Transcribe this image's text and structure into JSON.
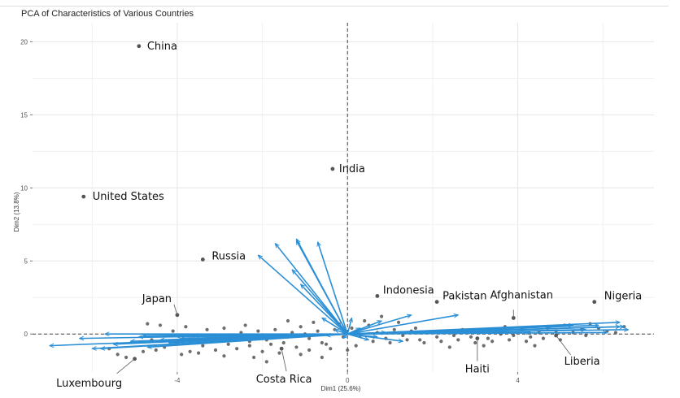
{
  "chart_data": {
    "type": "scatter",
    "title": "PCA of Characteristics of Various Countries",
    "xlabel": "Dim1 (25.6%)",
    "ylabel": "Dim2 (13.8%)",
    "xlim": [
      -7.4,
      7.2
    ],
    "ylim": [
      -2.6,
      21.3
    ],
    "xticks": [
      -4,
      0,
      4
    ],
    "yticks": [
      0,
      5,
      10,
      15,
      20
    ],
    "grid": true,
    "reference_lines": {
      "x": 0,
      "y": 0,
      "style": "dashed"
    },
    "point_color": "#555555",
    "arrow_color": "#2b8fd6",
    "labeled_points": [
      {
        "name": "China",
        "x": -4.9,
        "y": 19.7
      },
      {
        "name": "India",
        "x": -0.35,
        "y": 11.3
      },
      {
        "name": "United States",
        "x": -6.2,
        "y": 9.4
      },
      {
        "name": "Russia",
        "x": -3.4,
        "y": 5.1
      },
      {
        "name": "Japan",
        "x": -4.0,
        "y": 1.3
      },
      {
        "name": "Indonesia",
        "x": 0.7,
        "y": 2.6
      },
      {
        "name": "Pakistan",
        "x": 2.1,
        "y": 2.2
      },
      {
        "name": "Afghanistan",
        "x": 3.9,
        "y": 1.1
      },
      {
        "name": "Nigeria",
        "x": 5.8,
        "y": 2.2
      },
      {
        "name": "Haiti",
        "x": 3.05,
        "y": -0.3
      },
      {
        "name": "Liberia",
        "x": 4.9,
        "y": -0.1
      },
      {
        "name": "Costa Rica",
        "x": -1.55,
        "y": -1.0
      },
      {
        "name": "Luxembourg",
        "x": -5.0,
        "y": -1.7
      }
    ],
    "points": [
      [
        -4.4,
        0.6
      ],
      [
        -4.1,
        0.2
      ],
      [
        -3.8,
        0.5
      ],
      [
        -3.6,
        -0.1
      ],
      [
        -3.3,
        0.3
      ],
      [
        -3.1,
        -0.2
      ],
      [
        -2.9,
        0.4
      ],
      [
        -2.7,
        -0.3
      ],
      [
        -2.5,
        0.1
      ],
      [
        -2.3,
        -0.5
      ],
      [
        -2.1,
        0.2
      ],
      [
        -1.9,
        -0.4
      ],
      [
        -1.7,
        0.3
      ],
      [
        -1.5,
        -0.6
      ],
      [
        -1.3,
        0.1
      ],
      [
        -1.1,
        0.5
      ],
      [
        -0.9,
        -0.3
      ],
      [
        -0.7,
        0.2
      ],
      [
        -0.5,
        -0.7
      ],
      [
        -0.3,
        0.3
      ],
      [
        -0.1,
        -0.2
      ],
      [
        0.1,
        0.4
      ],
      [
        0.3,
        -0.1
      ],
      [
        0.5,
        0.6
      ],
      [
        0.7,
        0.1
      ],
      [
        0.9,
        -0.3
      ],
      [
        1.1,
        0.3
      ],
      [
        1.3,
        -0.1
      ],
      [
        1.5,
        0.2
      ],
      [
        1.7,
        -0.4
      ],
      [
        1.9,
        0.1
      ],
      [
        2.1,
        -0.2
      ],
      [
        2.3,
        0.2
      ],
      [
        2.5,
        -0.1
      ],
      [
        2.7,
        0.3
      ],
      [
        2.9,
        -0.2
      ],
      [
        3.1,
        0.1
      ],
      [
        3.3,
        -0.3
      ],
      [
        3.5,
        0.2
      ],
      [
        3.7,
        0.5
      ],
      [
        3.9,
        -0.1
      ],
      [
        4.1,
        0.3
      ],
      [
        4.3,
        -0.2
      ],
      [
        4.5,
        0.1
      ],
      [
        4.7,
        0.4
      ],
      [
        4.9,
        0.2
      ],
      [
        5.1,
        0.6
      ],
      [
        5.3,
        0.1
      ],
      [
        5.5,
        0.3
      ],
      [
        5.7,
        0.7
      ],
      [
        5.9,
        0.4
      ],
      [
        6.1,
        0.2
      ],
      [
        -4.7,
        0.7
      ],
      [
        -4.6,
        -0.4
      ],
      [
        -4.3,
        -0.9
      ],
      [
        -4.0,
        -0.6
      ],
      [
        -3.7,
        -1.2
      ],
      [
        -3.4,
        -0.8
      ],
      [
        -3.1,
        -1.1
      ],
      [
        -2.8,
        -0.7
      ],
      [
        -2.6,
        -1.0
      ],
      [
        -2.3,
        -0.8
      ],
      [
        -2.0,
        -1.2
      ],
      [
        -1.8,
        -0.7
      ],
      [
        -1.6,
        -1.3
      ],
      [
        -1.2,
        -0.9
      ],
      [
        -0.9,
        -1.1
      ],
      [
        -0.6,
        -0.6
      ],
      [
        -0.4,
        -1.0
      ],
      [
        0.2,
        -0.8
      ],
      [
        0.6,
        -0.5
      ],
      [
        1.0,
        -0.6
      ],
      [
        1.4,
        -0.4
      ],
      [
        1.8,
        -0.6
      ],
      [
        2.2,
        -0.5
      ],
      [
        2.6,
        -0.4
      ],
      [
        3.0,
        -0.6
      ],
      [
        3.4,
        -0.5
      ],
      [
        3.8,
        -0.4
      ],
      [
        4.2,
        -0.5
      ],
      [
        4.6,
        -0.3
      ],
      [
        5.0,
        -0.4
      ],
      [
        -2.4,
        0.6
      ],
      [
        -1.4,
        0.9
      ],
      [
        -0.8,
        0.8
      ],
      [
        -0.2,
        0.7
      ],
      [
        0.4,
        0.9
      ],
      [
        0.8,
        1.2
      ],
      [
        1.2,
        0.8
      ],
      [
        -5.2,
        -1.6
      ],
      [
        -5.4,
        -1.4
      ],
      [
        -4.8,
        -1.2
      ],
      [
        -4.5,
        -1.1
      ],
      [
        -3.9,
        -1.4
      ],
      [
        -3.5,
        -1.3
      ],
      [
        -2.9,
        -1.5
      ],
      [
        -2.2,
        -1.6
      ],
      [
        -1.9,
        -1.9
      ],
      [
        -1.1,
        -1.4
      ],
      [
        -0.6,
        -1.6
      ],
      [
        0.0,
        -1.1
      ],
      [
        2.4,
        -0.9
      ],
      [
        3.2,
        -0.8
      ],
      [
        4.4,
        -0.8
      ],
      [
        5.6,
        -0.1
      ],
      [
        6.3,
        0.1
      ],
      [
        6.5,
        0.5
      ],
      [
        -5.6,
        -1.0
      ],
      [
        -3.2,
        -0.5
      ],
      [
        -1.0,
        0.0
      ],
      [
        1.6,
        0.4
      ],
      [
        3.6,
        0.0
      ]
    ],
    "loading_arrows": [
      [
        -7.0,
        -0.8
      ],
      [
        -6.3,
        -0.3
      ],
      [
        -6.0,
        -1.0
      ],
      [
        -5.8,
        -1.0
      ],
      [
        -5.7,
        0.0
      ],
      [
        -5.5,
        -0.7
      ],
      [
        -5.1,
        -0.5
      ],
      [
        -4.9,
        -0.2
      ],
      [
        -4.8,
        -0.1
      ],
      [
        -4.7,
        -0.9
      ],
      [
        -4.4,
        -0.4
      ],
      [
        -4.2,
        -0.6
      ],
      [
        -4.0,
        -0.2
      ],
      [
        -3.9,
        -0.3
      ],
      [
        -3.6,
        -0.1
      ],
      [
        -3.3,
        -0.4
      ],
      [
        -3.0,
        -0.2
      ],
      [
        -2.8,
        -0.1
      ],
      [
        -2.1,
        -0.1
      ],
      [
        -1.5,
        -0.2
      ],
      [
        -2.1,
        5.4
      ],
      [
        -1.7,
        6.2
      ],
      [
        -1.2,
        6.4
      ],
      [
        -1.2,
        6.5
      ],
      [
        -0.7,
        6.3
      ],
      [
        -1.3,
        4.4
      ],
      [
        -1.1,
        3.4
      ],
      [
        -0.6,
        1.1
      ],
      [
        -0.3,
        0.3
      ],
      [
        -0.1,
        -0.3
      ],
      [
        -0.5,
        -0.1
      ],
      [
        0.1,
        1.1
      ],
      [
        0.8,
        0.9
      ],
      [
        1.5,
        1.3
      ],
      [
        2.6,
        1.3
      ],
      [
        1.3,
        -0.5
      ],
      [
        0.5,
        -0.4
      ],
      [
        0.3,
        0.4
      ],
      [
        0.7,
        -0.2
      ],
      [
        0.9,
        0.1
      ],
      [
        3.8,
        0.3
      ],
      [
        4.3,
        0.1
      ],
      [
        4.8,
        0.5
      ],
      [
        5.3,
        0.6
      ],
      [
        5.6,
        0.3
      ],
      [
        5.9,
        0.6
      ],
      [
        6.1,
        0.1
      ],
      [
        6.4,
        0.5
      ],
      [
        6.4,
        0.8
      ],
      [
        6.5,
        0.5
      ],
      [
        6.6,
        0.3
      ]
    ]
  }
}
